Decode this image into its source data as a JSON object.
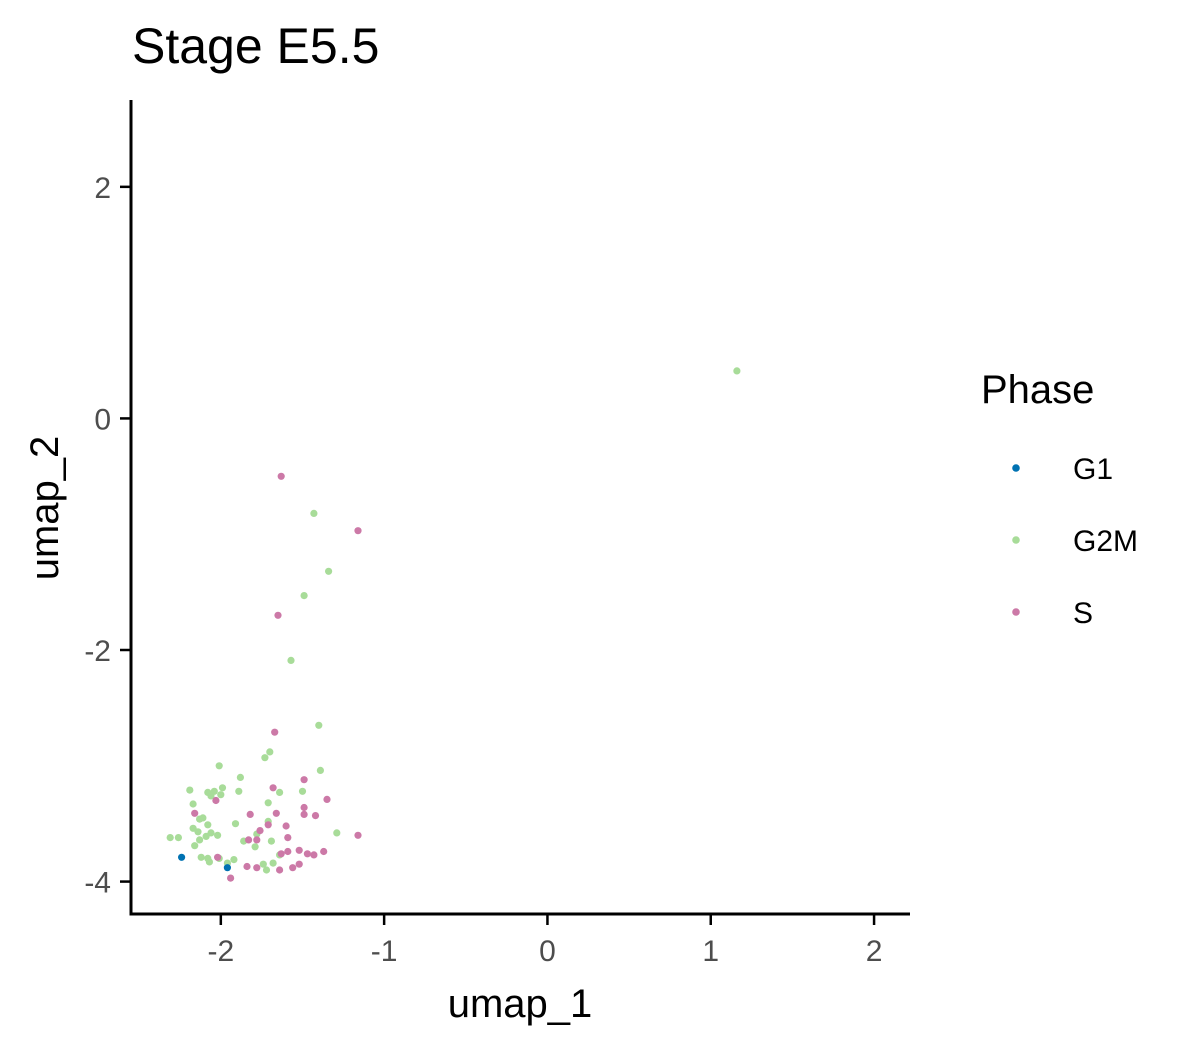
{
  "chart_data": {
    "type": "scatter",
    "title": "Stage E5.5",
    "xlabel": "umap_1",
    "ylabel": "umap_2",
    "xlim": [
      -2.55,
      2.22
    ],
    "ylim": [
      -4.28,
      2.75
    ],
    "x_ticks": [
      -2,
      -1,
      0,
      1,
      2
    ],
    "x_tick_labels": [
      "-2",
      "-1",
      "0",
      "1",
      "2"
    ],
    "y_ticks": [
      -4,
      -2,
      0,
      2
    ],
    "y_tick_labels": [
      "-4",
      "-2",
      "0",
      "2"
    ],
    "grid": false,
    "legend": {
      "title": "Phase",
      "position": "right"
    },
    "series": [
      {
        "name": "G1",
        "color": "#0072B2",
        "points": [
          [
            -2.24,
            -3.79
          ],
          [
            -1.96,
            -3.88
          ]
        ]
      },
      {
        "name": "G2M",
        "color": "#A8DC99",
        "points": [
          [
            1.16,
            0.41
          ],
          [
            -1.43,
            -0.82
          ],
          [
            -1.34,
            -1.32
          ],
          [
            -1.49,
            -1.53
          ],
          [
            -1.57,
            -2.09
          ],
          [
            -1.4,
            -2.65
          ],
          [
            -1.7,
            -2.88
          ],
          [
            -1.73,
            -2.93
          ],
          [
            -1.39,
            -3.04
          ],
          [
            -2.01,
            -3.0
          ],
          [
            -1.88,
            -3.1
          ],
          [
            -2.19,
            -3.21
          ],
          [
            -2.04,
            -3.22
          ],
          [
            -1.99,
            -3.19
          ],
          [
            -2.0,
            -3.25
          ],
          [
            -2.06,
            -3.26
          ],
          [
            -2.08,
            -3.23
          ],
          [
            -2.17,
            -3.33
          ],
          [
            -1.64,
            -3.23
          ],
          [
            -1.71,
            -3.32
          ],
          [
            -1.5,
            -3.22
          ],
          [
            -1.89,
            -3.22
          ],
          [
            -2.11,
            -3.45
          ],
          [
            -2.13,
            -3.46
          ],
          [
            -2.08,
            -3.51
          ],
          [
            -1.91,
            -3.5
          ],
          [
            -2.17,
            -3.54
          ],
          [
            -2.14,
            -3.57
          ],
          [
            -2.31,
            -3.62
          ],
          [
            -2.26,
            -3.62
          ],
          [
            -2.09,
            -3.61
          ],
          [
            -2.06,
            -3.58
          ],
          [
            -2.02,
            -3.6
          ],
          [
            -2.13,
            -3.64
          ],
          [
            -2.16,
            -3.69
          ],
          [
            -1.86,
            -3.65
          ],
          [
            -1.69,
            -3.65
          ],
          [
            -1.79,
            -3.7
          ],
          [
            -1.29,
            -3.58
          ],
          [
            -2.12,
            -3.79
          ],
          [
            -2.08,
            -3.8
          ],
          [
            -2.07,
            -3.83
          ],
          [
            -2.01,
            -3.8
          ],
          [
            -1.96,
            -3.84
          ],
          [
            -1.92,
            -3.81
          ],
          [
            -1.74,
            -3.85
          ],
          [
            -1.68,
            -3.84
          ],
          [
            -1.72,
            -3.9
          ],
          [
            -1.64,
            -3.77
          ],
          [
            -1.71,
            -3.48
          ],
          [
            -1.78,
            -3.59
          ]
        ]
      },
      {
        "name": "S",
        "color": "#CC79A7",
        "points": [
          [
            -1.63,
            -0.5
          ],
          [
            -1.16,
            -0.97
          ],
          [
            -1.65,
            -1.7
          ],
          [
            -1.67,
            -2.71
          ],
          [
            -1.49,
            -3.12
          ],
          [
            -1.68,
            -3.19
          ],
          [
            -1.82,
            -3.42
          ],
          [
            -1.66,
            -3.41
          ],
          [
            -1.49,
            -3.36
          ],
          [
            -1.49,
            -3.42
          ],
          [
            -1.35,
            -3.29
          ],
          [
            -2.03,
            -3.3
          ],
          [
            -1.42,
            -3.43
          ],
          [
            -2.16,
            -3.41
          ],
          [
            -1.76,
            -3.56
          ],
          [
            -1.71,
            -3.51
          ],
          [
            -1.83,
            -3.64
          ],
          [
            -1.78,
            -3.64
          ],
          [
            -1.16,
            -3.6
          ],
          [
            -1.59,
            -3.74
          ],
          [
            -1.63,
            -3.76
          ],
          [
            -1.52,
            -3.73
          ],
          [
            -1.47,
            -3.76
          ],
          [
            -1.43,
            -3.77
          ],
          [
            -1.37,
            -3.74
          ],
          [
            -1.52,
            -3.85
          ],
          [
            -1.56,
            -3.88
          ],
          [
            -1.64,
            -3.9
          ],
          [
            -1.78,
            -3.88
          ],
          [
            -1.84,
            -3.87
          ],
          [
            -1.94,
            -3.97
          ],
          [
            -2.02,
            -3.79
          ],
          [
            -1.59,
            -3.62
          ],
          [
            -1.6,
            -3.52
          ]
        ]
      }
    ]
  }
}
